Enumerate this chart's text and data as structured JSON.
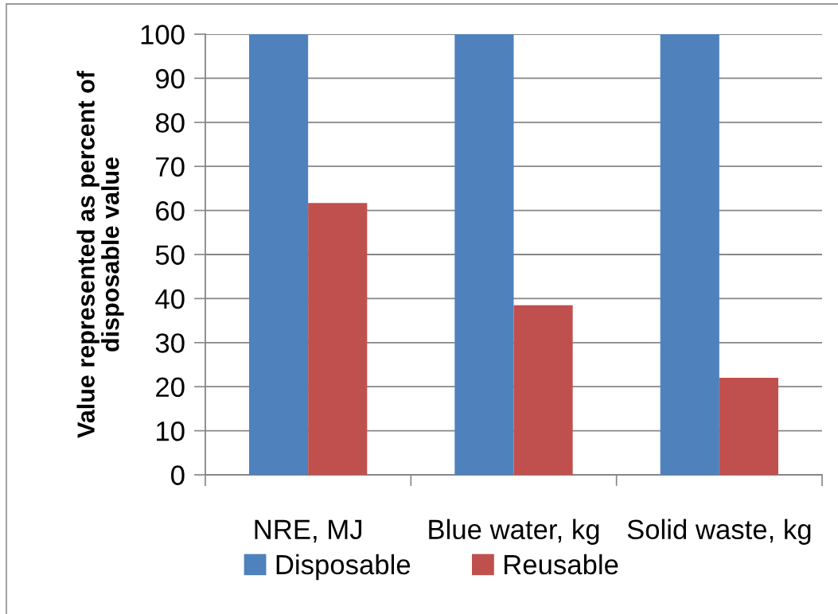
{
  "chart_data": {
    "type": "bar",
    "ylabel": "Value represented as percent of\ndisposable value",
    "categories": [
      "NRE, MJ",
      "Blue water, kg",
      "Solid waste, kg"
    ],
    "series": [
      {
        "name": "Disposable",
        "color": "#4f81bd",
        "values": [
          100,
          100,
          100
        ]
      },
      {
        "name": "Reusable",
        "color": "#c0504d",
        "values": [
          61.7,
          38.5,
          22.0
        ]
      }
    ],
    "ylim": [
      0,
      100
    ],
    "yticks": [
      0,
      10,
      20,
      30,
      40,
      50,
      60,
      70,
      80,
      90,
      100
    ],
    "grid": "y",
    "legend": "bottom"
  }
}
